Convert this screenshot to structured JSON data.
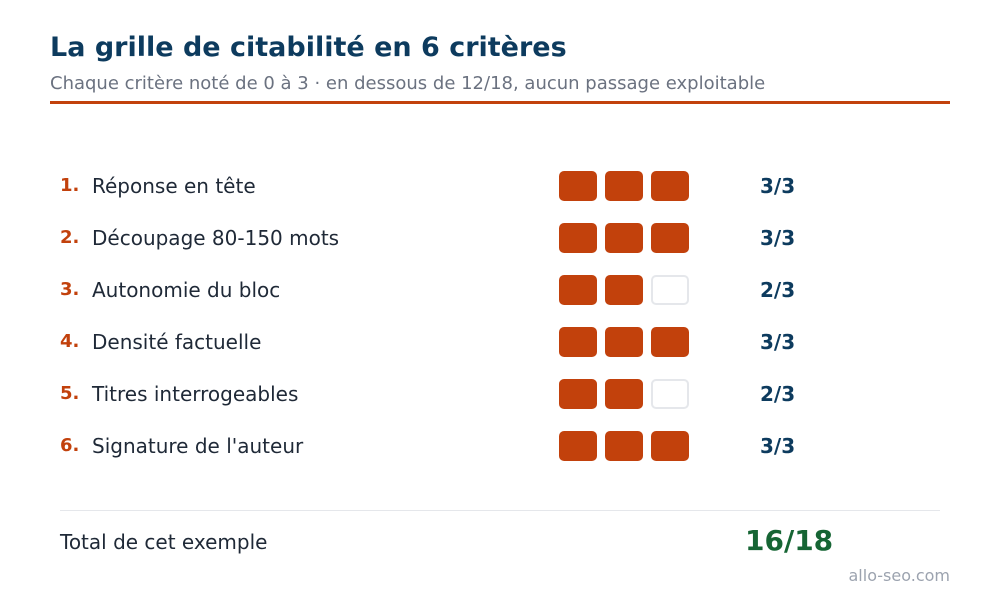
{
  "header": {
    "title": "La grille de citabilité en 6 critères",
    "subtitle": "Chaque critère noté de 0 à 3 · en dessous de 12/18, aucun passage exploitable"
  },
  "colors": {
    "accent": "#c2410c",
    "title": "#0d3b5e",
    "total": "#166534",
    "empty_block_border": "#e5e7eb"
  },
  "criteria": [
    {
      "num": "1.",
      "label": "Réponse en tête",
      "filled": 3,
      "max": 3,
      "score": "3/3"
    },
    {
      "num": "2.",
      "label": "Découpage 80-150 mots",
      "filled": 3,
      "max": 3,
      "score": "3/3"
    },
    {
      "num": "3.",
      "label": "Autonomie du bloc",
      "filled": 2,
      "max": 3,
      "score": "2/3"
    },
    {
      "num": "4.",
      "label": "Densité factuelle",
      "filled": 3,
      "max": 3,
      "score": "3/3"
    },
    {
      "num": "5.",
      "label": "Titres interrogeables",
      "filled": 2,
      "max": 3,
      "score": "2/3"
    },
    {
      "num": "6.",
      "label": "Signature de l'auteur",
      "filled": 3,
      "max": 3,
      "score": "3/3"
    }
  ],
  "total": {
    "label": "Total de cet exemple",
    "value": "16/18"
  },
  "footer": {
    "site": "allo-seo.com"
  }
}
